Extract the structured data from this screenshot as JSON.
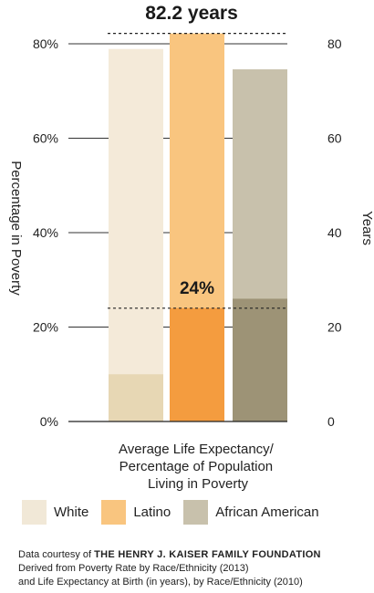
{
  "chart_data": {
    "type": "bar",
    "title": "82.2 years",
    "xlabel": "Average Life Expectancy/ Percentage of Population Living in Poverty",
    "xlabel_lines": [
      "Average Life Expectancy/",
      "Percentage of Population",
      "Living in Poverty"
    ],
    "ylabel_left": "Percentage in Poverty",
    "ylabel_right": "Years",
    "left_ticks": [
      "0%",
      "20%",
      "40%",
      "60%",
      "80%"
    ],
    "right_ticks": [
      "0",
      "20",
      "40",
      "60",
      "80"
    ],
    "ylim": [
      0,
      80
    ],
    "categories": [
      "White",
      "Latino",
      "African American"
    ],
    "series": [
      {
        "name": "Life Expectancy (years)",
        "values": [
          78.9,
          82.2,
          74.6
        ]
      },
      {
        "name": "Percentage in Poverty",
        "values": [
          10,
          24,
          26
        ]
      }
    ],
    "reference_lines": [
      {
        "value": 82.2,
        "label": "82.2 years"
      },
      {
        "value": 24,
        "label": "24%"
      }
    ],
    "annotation_poverty": "24%",
    "colors": {
      "life": [
        "#f4ead9",
        "#f9c57f",
        "#c8c1ac"
      ],
      "poverty": [
        "#e7d7b4",
        "#f49c3f",
        "#9d9376"
      ]
    },
    "legend": [
      {
        "label": "White",
        "color": "#f1e8d7"
      },
      {
        "label": "Latino",
        "color": "#f9c57f"
      },
      {
        "label": "African American",
        "color": "#c8c1ac"
      }
    ]
  },
  "source": {
    "prefix": "Data courtesy of ",
    "org": "THE HENRY J. KAISER FAMILY FOUNDATION",
    "line2": "Derived from Poverty Rate by Race/Ethnicity (2013)",
    "line3": "and Life Expectancy at Birth (in years), by Race/Ethnicity (2010)"
  }
}
